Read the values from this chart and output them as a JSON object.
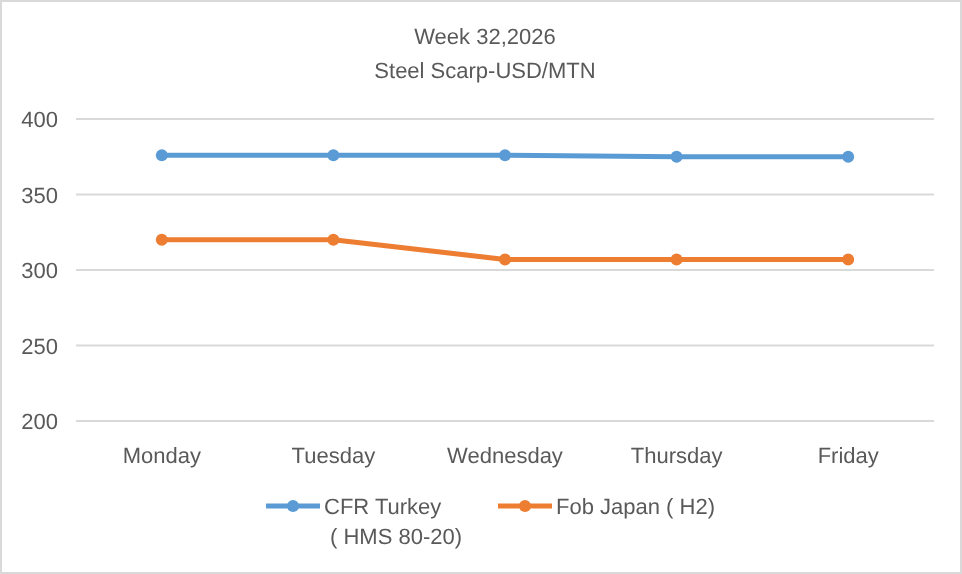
{
  "chart_data": {
    "type": "line",
    "title": "Week 32,2026",
    "subtitle": "Steel Scarp-USD/MTN",
    "categories": [
      "Monday",
      "Tuesday",
      "Wednesday",
      "Thursday",
      "Friday"
    ],
    "series": [
      {
        "name": "CFR Turkey\n( HMS 80-20)",
        "color": "#5b9bd5",
        "values": [
          376,
          376,
          376,
          375,
          375
        ]
      },
      {
        "name": "Fob Japan ( H2)",
        "color": "#ed7d31",
        "values": [
          320,
          320,
          307,
          307,
          307
        ]
      }
    ],
    "ylim": [
      200,
      400
    ],
    "yticks": [
      200,
      250,
      300,
      350,
      400
    ],
    "grid": "y",
    "legend": "bottom",
    "marker": "circle"
  }
}
